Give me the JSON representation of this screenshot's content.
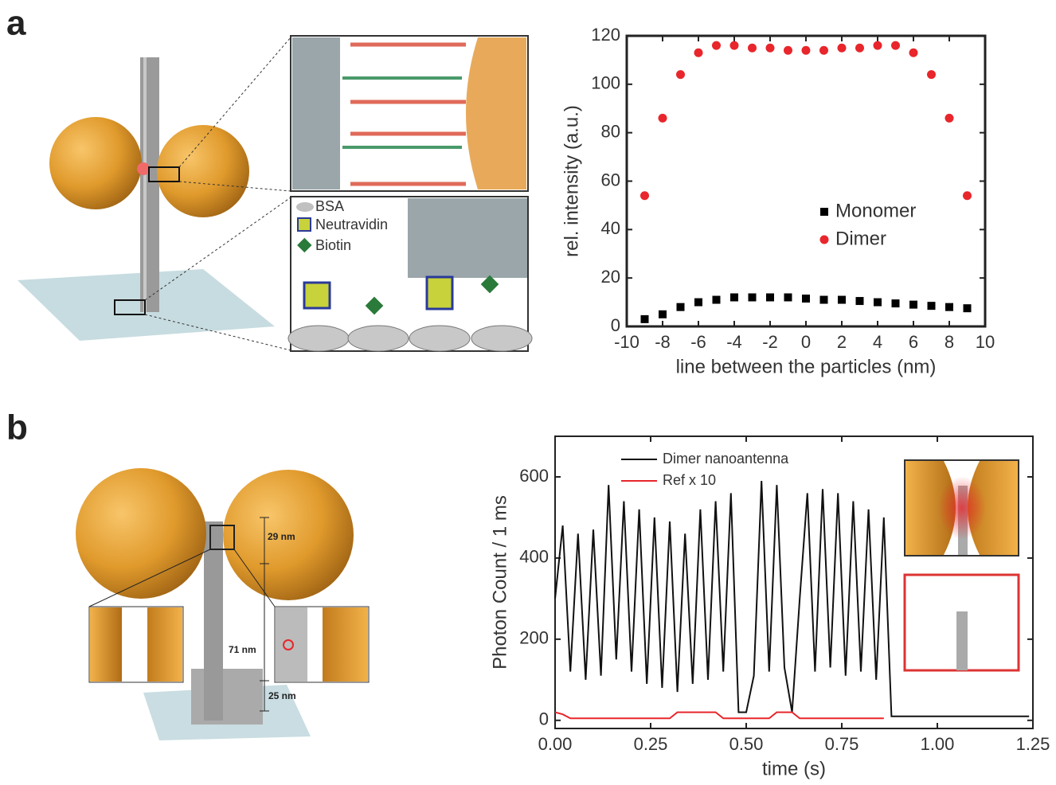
{
  "panels": [
    {
      "label": "a",
      "illustration_labels": [
        "BSA",
        "Neutravidin",
        "Biotin"
      ]
    },
    {
      "label": "b",
      "illustration_labels": [
        "29 nm",
        "71 nm",
        "25 nm"
      ]
    }
  ],
  "chart_data": [
    {
      "type": "scatter",
      "x_label": "line between the particles (nm)",
      "y_label": "rel. intensity (a.u.)",
      "x": [
        -9,
        -8,
        -7,
        -6,
        -5,
        -4,
        -3,
        -2,
        -1,
        0,
        1,
        2,
        3,
        4,
        5,
        6,
        7,
        8,
        9
      ],
      "series": [
        {
          "name": "Monomer",
          "color": "#000000",
          "marker": "square",
          "values": [
            3,
            5,
            8,
            10,
            11,
            12,
            12,
            12,
            12,
            11.5,
            11,
            11,
            10.5,
            10,
            9.5,
            9,
            8.5,
            8,
            7.5
          ]
        },
        {
          "name": "Dimer",
          "color": "#e8262b",
          "marker": "circle",
          "values": [
            54,
            86,
            104,
            113,
            116,
            116,
            115,
            115,
            114,
            114,
            114,
            115,
            115,
            116,
            116,
            113,
            104,
            86,
            54
          ]
        }
      ],
      "xlim": [
        -10,
        10
      ],
      "xticks": [
        -10,
        -8,
        -6,
        -4,
        -2,
        0,
        2,
        4,
        6,
        8,
        10
      ],
      "ylim": [
        0,
        120
      ],
      "yticks": [
        0,
        20,
        40,
        60,
        80,
        100,
        120
      ],
      "legend": "center-right"
    },
    {
      "type": "line",
      "x_label": "time (s)",
      "y_label": "Photon Count / 1 ms",
      "x": [
        0,
        0.02,
        0.04,
        0.06,
        0.08,
        0.1,
        0.12,
        0.14,
        0.16,
        0.18,
        0.2,
        0.22,
        0.24,
        0.26,
        0.28,
        0.3,
        0.32,
        0.34,
        0.36,
        0.38,
        0.4,
        0.42,
        0.44,
        0.46,
        0.48,
        0.5,
        0.52,
        0.54,
        0.56,
        0.58,
        0.6,
        0.62,
        0.64,
        0.66,
        0.68,
        0.7,
        0.72,
        0.74,
        0.76,
        0.78,
        0.8,
        0.82,
        0.84,
        0.86,
        0.88,
        0.9,
        0.92,
        0.94,
        0.96,
        0.98,
        1.0,
        1.02,
        1.04,
        1.06,
        1.08,
        1.1,
        1.12,
        1.14,
        1.16,
        1.18,
        1.2,
        1.22,
        1.24
      ],
      "series": [
        {
          "name": "Dimer nanoantenna",
          "color": "#111111",
          "values": [
            300,
            480,
            120,
            460,
            100,
            470,
            110,
            580,
            150,
            540,
            120,
            520,
            90,
            500,
            80,
            490,
            70,
            460,
            90,
            520,
            100,
            540,
            120,
            560,
            20,
            20,
            110,
            590,
            120,
            580,
            130,
            20,
            300,
            560,
            120,
            570,
            130,
            560,
            110,
            540,
            120,
            520,
            100,
            500,
            10,
            10,
            10,
            10,
            10,
            10,
            10,
            10,
            10,
            10,
            10,
            10,
            10,
            10,
            10,
            10,
            10,
            10,
            10
          ]
        },
        {
          "name": "Ref x 10",
          "color": "#e8262b",
          "values": [
            20,
            15,
            5,
            5,
            5,
            5,
            5,
            5,
            5,
            5,
            5,
            5,
            5,
            5,
            5,
            5,
            20,
            20,
            20,
            20,
            20,
            20,
            5,
            5,
            5,
            5,
            5,
            5,
            5,
            20,
            20,
            20,
            5,
            5,
            5,
            5,
            5,
            5,
            5,
            5,
            5,
            5,
            5,
            5,
            null,
            null,
            null,
            null,
            null,
            null,
            null,
            null,
            null,
            null,
            null,
            null,
            null,
            null,
            null,
            null,
            null,
            null,
            null
          ]
        }
      ],
      "xlim": [
        0,
        1.25
      ],
      "xticks": [
        {
          "value": 0,
          "label": "0.00"
        },
        0.25,
        {
          "value": 0.5,
          "label": "0.50"
        },
        0.75,
        {
          "value": 1,
          "label": "1.00"
        },
        1.25
      ],
      "ylim": [
        -20,
        700
      ],
      "yticks": [
        0,
        200,
        400,
        600
      ],
      "legend": "upper-left"
    }
  ]
}
